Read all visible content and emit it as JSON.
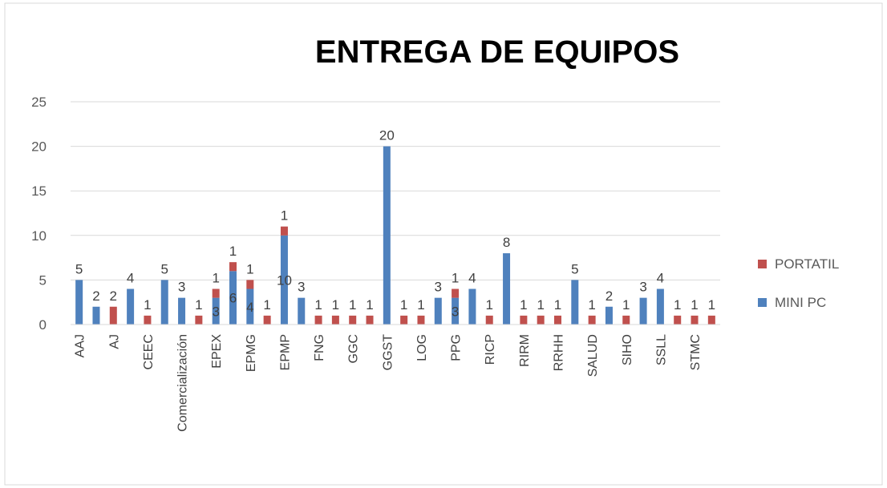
{
  "chart_data": {
    "type": "stacked_bar",
    "title": "ENTREGA DE EQUIPOS",
    "categories": [
      "AAJ",
      null,
      "AJ",
      null,
      "CEEC",
      null,
      "Comercialización",
      null,
      "EPEX",
      null,
      "EPMG",
      null,
      "EPMP",
      null,
      "FNG",
      null,
      "GGC",
      null,
      "GGST",
      null,
      "LOG",
      null,
      "PPG",
      null,
      "RICP",
      null,
      "RIRM",
      null,
      "RRHH",
      null,
      "SALUD",
      null,
      "SIHO",
      null,
      "SSLL",
      null,
      "STMC",
      null
    ],
    "series": [
      {
        "name": "MINI PC",
        "color": "#4f81bd",
        "values": [
          5,
          2,
          null,
          4,
          null,
          5,
          3,
          null,
          3,
          6,
          4,
          null,
          10,
          3,
          null,
          null,
          null,
          null,
          20,
          null,
          null,
          3,
          3,
          4,
          null,
          8,
          null,
          null,
          null,
          5,
          null,
          2,
          null,
          3,
          4,
          null,
          null,
          null
        ]
      },
      {
        "name": "PORTATIL",
        "color": "#c0504d",
        "values": [
          null,
          null,
          2,
          null,
          1,
          null,
          null,
          1,
          1,
          1,
          1,
          1,
          1,
          null,
          1,
          1,
          1,
          1,
          null,
          1,
          1,
          null,
          1,
          null,
          1,
          null,
          1,
          1,
          1,
          null,
          1,
          null,
          1,
          null,
          null,
          1,
          1,
          1
        ]
      }
    ],
    "ylim": [
      0,
      25
    ],
    "yticks": [
      0,
      5,
      10,
      15,
      20,
      25
    ],
    "grid": true,
    "legend": "right"
  }
}
